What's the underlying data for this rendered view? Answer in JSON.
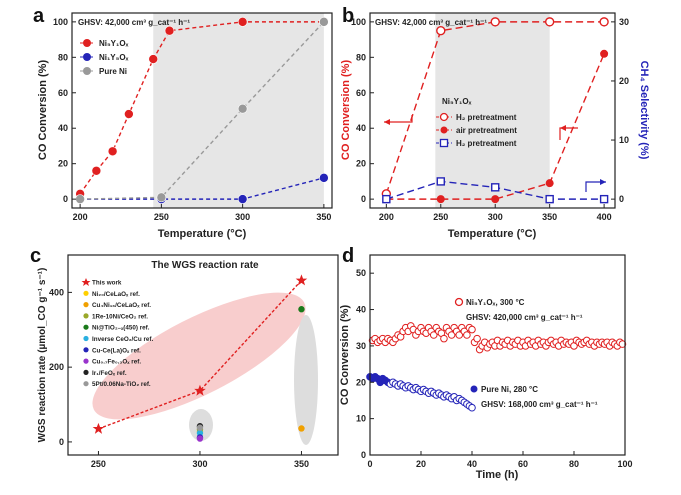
{
  "figure": {
    "panel_labels": [
      "a",
      "b",
      "c",
      "d"
    ]
  },
  "chart_data": [
    {
      "panel": "a",
      "type": "line",
      "annotation": "GHSV: 42,000 cm³ g_cat⁻¹ h⁻¹",
      "xlabel": "Temperature (°C)",
      "ylabel": "CO Conversion (%)",
      "xlim": [
        195,
        355
      ],
      "ylim": [
        -5,
        105
      ],
      "xticks": [
        200,
        250,
        300,
        350
      ],
      "yticks": [
        0,
        20,
        40,
        60,
        80,
        100
      ],
      "shade": [
        245,
        350
      ],
      "series": [
        {
          "name": "Ni5Y1Ox",
          "label": "Ni₅Y₁Oₓ",
          "color": "#e02020",
          "x": [
            200,
            210,
            220,
            230,
            245,
            255,
            300,
            350
          ],
          "y": [
            3,
            16,
            27,
            48,
            79,
            95,
            100,
            100
          ]
        },
        {
          "name": "Ni1Y5Ox",
          "label": "Ni₁Y₅Oₓ",
          "color": "#2424b8",
          "x": [
            200,
            250,
            300,
            350
          ],
          "y": [
            0,
            0,
            0,
            12
          ]
        },
        {
          "name": "Pure Ni",
          "label": "Pure Ni",
          "color": "#999999",
          "x": [
            200,
            250,
            300,
            350
          ],
          "y": [
            0,
            1,
            51,
            100
          ]
        }
      ]
    },
    {
      "panel": "b",
      "type": "line",
      "annotation": "GHSV: 42,000 cm³ g_cat⁻¹ h⁻¹",
      "legend_title": "Ni₅Y₁Oₓ",
      "xlabel": "Temperature (°C)",
      "ylabel": "CO Conversion (%)",
      "ylabel_right": "CH₄ Selectivity (%)",
      "xlim": [
        185,
        410
      ],
      "ylim": [
        -5,
        105
      ],
      "ylim_right": [
        -1.5,
        31.5
      ],
      "xticks": [
        200,
        250,
        300,
        350,
        400
      ],
      "yticks": [
        0,
        20,
        40,
        60,
        80,
        100
      ],
      "yticks_right": [
        0,
        10,
        20,
        30
      ],
      "shade": [
        245,
        350
      ],
      "series": [
        {
          "name": "H2 pretreatment (conversion)",
          "label": "H₂ pretreatment",
          "color": "#e02020",
          "x": [
            200,
            250,
            300,
            350,
            400
          ],
          "y": [
            3,
            95,
            100,
            100,
            100
          ]
        },
        {
          "name": "air pretreatment (conversion)",
          "label": "air pretreatment",
          "color": "#e02020",
          "x": [
            200,
            250,
            300,
            350,
            400
          ],
          "y": [
            0,
            0,
            0,
            9,
            82
          ]
        },
        {
          "name": "H2 pretreatment (CH4 selectivity)",
          "label": "H₂ pretreatment",
          "color": "#2424b8",
          "x": [
            200,
            250,
            300,
            350,
            400
          ],
          "y": [
            0,
            3,
            2,
            0,
            0
          ]
        }
      ]
    },
    {
      "panel": "c",
      "type": "scatter",
      "title": "The WGS reaction rate",
      "xlabel": "",
      "ylabel": "WGS reaction rate (µmol_CO g⁻¹ s⁻¹)",
      "xlim": [
        235,
        368
      ],
      "ylim": [
        -35,
        500
      ],
      "xticks": [
        250,
        300,
        350
      ],
      "yticks": [
        0,
        200,
        400
      ],
      "series": [
        {
          "name": "This work",
          "label": "This work",
          "color": "#e02020",
          "x": [
            250,
            300,
            350
          ],
          "y": [
            35,
            137,
            432
          ]
        },
        {
          "name": "Ni20/CeLaO",
          "label": "Ni₂₀/CeLaOₓ ref.",
          "color": "#ffd000",
          "x": [
            300
          ],
          "y": [
            28
          ]
        },
        {
          "name": "Cu4Ni16/CeLaO",
          "label": "Cu₄Ni₁₆/CeLaOₓ ref.",
          "color": "#f0a000",
          "x": [
            350
          ],
          "y": [
            36
          ]
        },
        {
          "name": "1Re-10Ni/CeO2",
          "label": "1Re-10Ni/CeO₂ ref.",
          "color": "#9aa82a",
          "x": [
            300
          ],
          "y": [
            34
          ]
        },
        {
          "name": "Ni@TiO2-x(450)",
          "label": "Ni@TiO₂₋ₓ(450) ref.",
          "color": "#1a7a1a",
          "x": [
            350
          ],
          "y": [
            355
          ]
        },
        {
          "name": "Inverse CeO2/Cu",
          "label": "Inverse CeO₂/Cu ref.",
          "color": "#29b0e0",
          "x": [
            300
          ],
          "y": [
            24
          ]
        },
        {
          "name": "Cu-Ce(La)Ox",
          "label": "Cu-Ce(La)Oₓ ref.",
          "color": "#2424b8",
          "x": [
            300
          ],
          "y": [
            12
          ]
        },
        {
          "name": "Cu0.7Fe0.3Ox",
          "label": "Cu₀.₇Fe₀.₃Oₓ ref.",
          "color": "#9933cc",
          "x": [
            300
          ],
          "y": [
            9
          ]
        },
        {
          "name": "Ir1/FeOx",
          "label": "Ir₁/FeOₓ ref.",
          "color": "#222222",
          "x": [
            300
          ],
          "y": [
            42
          ]
        },
        {
          "name": "5Pt/0.06Na-TiO2",
          "label": "5Pt/0.06Na-TiO₂ ref.",
          "color": "#999999",
          "x": [
            300
          ],
          "y": [
            38
          ]
        }
      ]
    },
    {
      "panel": "d",
      "type": "scatter",
      "xlabel": "Time (h)",
      "ylabel": "CO Conversion (%)",
      "xlim": [
        0,
        100
      ],
      "ylim": [
        0,
        55
      ],
      "xticks": [
        0,
        20,
        40,
        60,
        80,
        100
      ],
      "yticks": [
        0,
        10,
        20,
        30,
        40,
        50
      ],
      "annotations": [
        {
          "line1": "Ni₅Y₁Oₓ, 300 °C",
          "line2": "GHSV: 420,000 cm³ g_cat⁻¹ h⁻¹"
        },
        {
          "line1": "Pure Ni, 280 °C",
          "line2": "GHSV: 168,000 cm³ g_cat⁻¹ h⁻¹"
        }
      ],
      "series": [
        {
          "name": "Ni5Y1Ox, 300 °C",
          "color": "#e02020",
          "x": [
            1,
            2,
            3,
            4,
            5,
            6,
            7,
            8,
            9,
            10,
            11,
            12,
            13,
            14,
            15,
            16,
            17,
            18,
            19,
            20,
            21,
            22,
            23,
            24,
            25,
            26,
            27,
            28,
            29,
            30,
            31,
            32,
            33,
            34,
            35,
            36,
            37,
            38,
            39,
            40,
            41,
            42,
            43,
            44,
            45,
            46,
            47,
            48,
            49,
            50,
            51,
            52,
            53,
            54,
            55,
            56,
            57,
            58,
            59,
            60,
            61,
            62,
            63,
            64,
            65,
            66,
            67,
            68,
            69,
            70,
            71,
            72,
            73,
            74,
            75,
            76,
            77,
            78,
            79,
            80,
            81,
            82,
            83,
            84,
            85,
            86,
            87,
            88,
            89,
            90,
            91,
            92,
            93,
            94,
            95,
            96,
            97,
            98,
            99
          ],
          "y": [
            31.5,
            32,
            31,
            31.5,
            32,
            31,
            32,
            31.5,
            31,
            32,
            33,
            32.5,
            34,
            35,
            34,
            35.5,
            34.5,
            33,
            34,
            35,
            34,
            33.5,
            35,
            34,
            33,
            35,
            34,
            33.5,
            32,
            35,
            34,
            33,
            35,
            34,
            33,
            35,
            34,
            33,
            35,
            34.5,
            31,
            32,
            29,
            30,
            31,
            29.5,
            30.5,
            31,
            30,
            31.5,
            30,
            31,
            30.5,
            31.5,
            30,
            31,
            30.5,
            31.5,
            30,
            31,
            30,
            31.5,
            30.5,
            31,
            30,
            31.5,
            30.5,
            31,
            30,
            31,
            31.5,
            30.5,
            31,
            30,
            31.5,
            30.5,
            31,
            30.5,
            31,
            30,
            31.5,
            31,
            30.5,
            31,
            31.5,
            30.5,
            31,
            30,
            31,
            30.5,
            31,
            30.5,
            31,
            30,
            31,
            30.5,
            30,
            31,
            30.5
          ]
        },
        {
          "name": "Pure Ni, 280 °C",
          "color": "#2424b8",
          "x": [
            0,
            1,
            2,
            3,
            4,
            5,
            6,
            7,
            8,
            9,
            10,
            11,
            12,
            13,
            14,
            15,
            16,
            17,
            18,
            19,
            20,
            21,
            22,
            23,
            24,
            25,
            26,
            27,
            28,
            29,
            30,
            31,
            32,
            33,
            34,
            35,
            36,
            37,
            38,
            39,
            40
          ],
          "y": [
            21.5,
            21,
            21.5,
            21,
            20,
            21,
            20.5,
            20,
            19.5,
            20,
            19.5,
            19,
            19.5,
            19,
            18.5,
            19,
            18.5,
            18,
            18.5,
            18,
            17.5,
            18,
            17.5,
            17,
            17.5,
            17,
            16.5,
            17,
            16.5,
            16,
            16.5,
            16,
            15.5,
            16,
            15,
            15.5,
            15,
            14.5,
            14,
            13.5,
            13
          ]
        }
      ]
    }
  ]
}
